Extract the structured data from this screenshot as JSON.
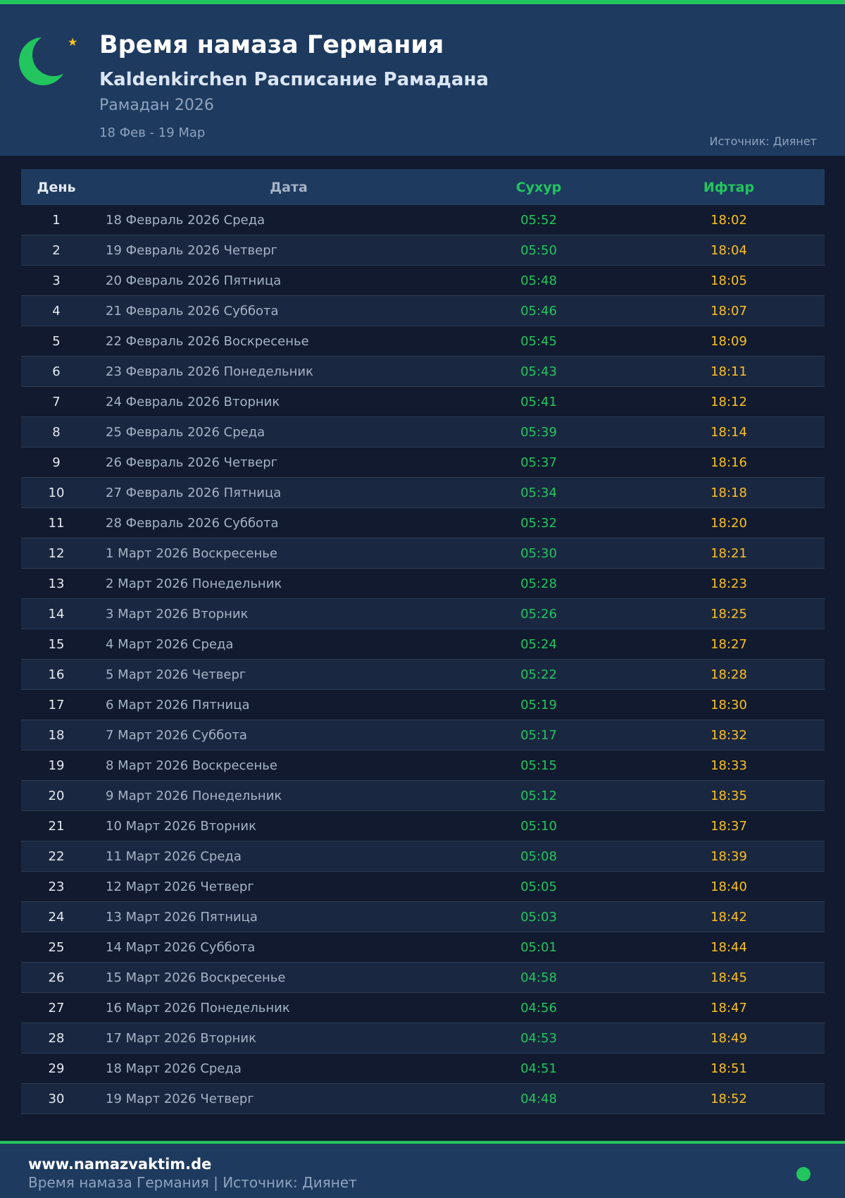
{
  "header": {
    "title": "Время намаза Германия",
    "subtitle": "Kaldenkirchen Расписание Рамадана",
    "year": "Рамадан 2026",
    "range": "18 Фев - 19 Мар",
    "source": "Источник: Диянет"
  },
  "table": {
    "columns": [
      "День",
      "Дата",
      "Сухур",
      "Ифтар"
    ],
    "rows": [
      [
        "1",
        "18 Февраль 2026 Среда",
        "05:52",
        "18:02"
      ],
      [
        "2",
        "19 Февраль 2026 Четверг",
        "05:50",
        "18:04"
      ],
      [
        "3",
        "20 Февраль 2026 Пятница",
        "05:48",
        "18:05"
      ],
      [
        "4",
        "21 Февраль 2026 Суббота",
        "05:46",
        "18:07"
      ],
      [
        "5",
        "22 Февраль 2026 Воскресенье",
        "05:45",
        "18:09"
      ],
      [
        "6",
        "23 Февраль 2026 Понедельник",
        "05:43",
        "18:11"
      ],
      [
        "7",
        "24 Февраль 2026 Вторник",
        "05:41",
        "18:12"
      ],
      [
        "8",
        "25 Февраль 2026 Среда",
        "05:39",
        "18:14"
      ],
      [
        "9",
        "26 Февраль 2026 Четверг",
        "05:37",
        "18:16"
      ],
      [
        "10",
        "27 Февраль 2026 Пятница",
        "05:34",
        "18:18"
      ],
      [
        "11",
        "28 Февраль 2026 Суббота",
        "05:32",
        "18:20"
      ],
      [
        "12",
        "1 Март 2026 Воскресенье",
        "05:30",
        "18:21"
      ],
      [
        "13",
        "2 Март 2026 Понедельник",
        "05:28",
        "18:23"
      ],
      [
        "14",
        "3 Март 2026 Вторник",
        "05:26",
        "18:25"
      ],
      [
        "15",
        "4 Март 2026 Среда",
        "05:24",
        "18:27"
      ],
      [
        "16",
        "5 Март 2026 Четверг",
        "05:22",
        "18:28"
      ],
      [
        "17",
        "6 Март 2026 Пятница",
        "05:19",
        "18:30"
      ],
      [
        "18",
        "7 Март 2026 Суббота",
        "05:17",
        "18:32"
      ],
      [
        "19",
        "8 Март 2026 Воскресенье",
        "05:15",
        "18:33"
      ],
      [
        "20",
        "9 Март 2026 Понедельник",
        "05:12",
        "18:35"
      ],
      [
        "21",
        "10 Март 2026 Вторник",
        "05:10",
        "18:37"
      ],
      [
        "22",
        "11 Март 2026 Среда",
        "05:08",
        "18:39"
      ],
      [
        "23",
        "12 Март 2026 Четверг",
        "05:05",
        "18:40"
      ],
      [
        "24",
        "13 Март 2026 Пятница",
        "05:03",
        "18:42"
      ],
      [
        "25",
        "14 Март 2026 Суббота",
        "05:01",
        "18:44"
      ],
      [
        "26",
        "15 Март 2026 Воскресенье",
        "04:58",
        "18:45"
      ],
      [
        "27",
        "16 Март 2026 Понедельник",
        "04:56",
        "18:47"
      ],
      [
        "28",
        "17 Март 2026 Вторник",
        "04:53",
        "18:49"
      ],
      [
        "29",
        "18 Март 2026 Среда",
        "04:51",
        "18:51"
      ],
      [
        "30",
        "19 Март 2026 Четверг",
        "04:48",
        "18:52"
      ]
    ]
  },
  "footer": {
    "site": "www.namazvaktim.de",
    "line": "Время намаза Германия | Источник: Диянет"
  },
  "colors": {
    "accent": "#22c55e",
    "iftar": "#fbbf24",
    "header_bg": "#1e3a5f",
    "page_bg": "#111a2e"
  },
  "icons": {
    "logo": "crescent-moon-icon",
    "star": "star-icon",
    "status": "status-dot-icon"
  }
}
